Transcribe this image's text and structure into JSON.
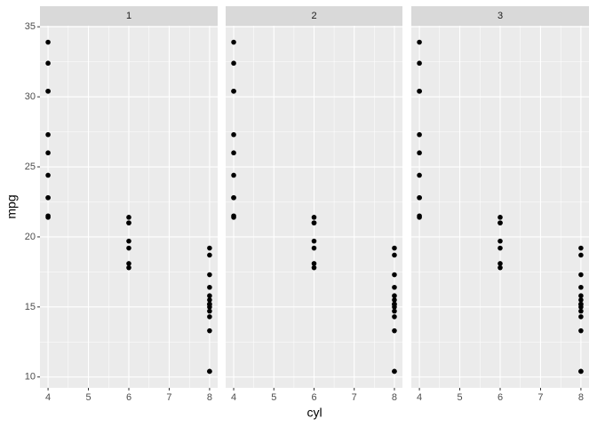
{
  "chart_data": {
    "type": "scatter",
    "x_label": "cyl",
    "y_label": "mpg",
    "xlim": [
      3.8,
      8.2
    ],
    "ylim": [
      9.225,
      35.075
    ],
    "xticks": [
      4,
      5,
      6,
      7,
      8
    ],
    "yticks": [
      10,
      15,
      20,
      25,
      30,
      35
    ],
    "grid": true,
    "color": "#000000",
    "facets": [
      {
        "title": "1",
        "x": [
          6,
          6,
          4,
          6,
          8,
          6,
          8,
          4,
          4,
          6,
          6,
          8,
          8,
          8,
          8,
          8,
          8,
          4,
          4,
          4,
          4,
          8,
          8,
          8,
          8,
          4,
          4,
          4,
          8,
          6,
          8,
          4
        ],
        "y": [
          21.0,
          21.0,
          22.8,
          21.4,
          18.7,
          18.1,
          14.3,
          24.4,
          22.8,
          19.2,
          17.8,
          16.4,
          17.3,
          15.2,
          10.4,
          10.4,
          14.7,
          32.4,
          30.4,
          33.9,
          21.5,
          15.5,
          15.2,
          13.3,
          19.2,
          27.3,
          26.0,
          30.4,
          15.8,
          19.7,
          15.0,
          21.4
        ]
      },
      {
        "title": "2",
        "x": [
          6,
          6,
          4,
          6,
          8,
          6,
          8,
          4,
          4,
          6,
          6,
          8,
          8,
          8,
          8,
          8,
          8,
          4,
          4,
          4,
          4,
          8,
          8,
          8,
          8,
          4,
          4,
          4,
          8,
          6,
          8,
          4
        ],
        "y": [
          21.0,
          21.0,
          22.8,
          21.4,
          18.7,
          18.1,
          14.3,
          24.4,
          22.8,
          19.2,
          17.8,
          16.4,
          17.3,
          15.2,
          10.4,
          10.4,
          14.7,
          32.4,
          30.4,
          33.9,
          21.5,
          15.5,
          15.2,
          13.3,
          19.2,
          27.3,
          26.0,
          30.4,
          15.8,
          19.7,
          15.0,
          21.4
        ]
      },
      {
        "title": "3",
        "x": [
          6,
          6,
          4,
          6,
          8,
          6,
          8,
          4,
          4,
          6,
          6,
          8,
          8,
          8,
          8,
          8,
          8,
          4,
          4,
          4,
          4,
          8,
          8,
          8,
          8,
          4,
          4,
          4,
          8,
          6,
          8,
          4
        ],
        "y": [
          21.0,
          21.0,
          22.8,
          21.4,
          18.7,
          18.1,
          14.3,
          24.4,
          22.8,
          19.2,
          17.8,
          16.4,
          17.3,
          15.2,
          10.4,
          10.4,
          14.7,
          32.4,
          30.4,
          33.9,
          21.5,
          15.5,
          15.2,
          13.3,
          19.2,
          27.3,
          26.0,
          30.4,
          15.8,
          19.7,
          15.0,
          21.4
        ]
      }
    ]
  }
}
